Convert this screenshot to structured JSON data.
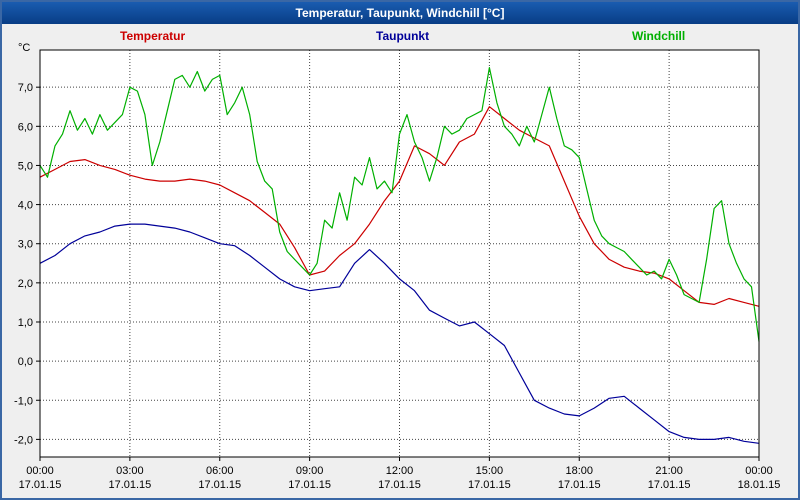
{
  "title": "Temperatur, Taupunkt, Windchill [°C]",
  "legend": [
    "Temperatur",
    "Taupunkt",
    "Windchill"
  ],
  "chart_data": {
    "type": "line",
    "title": "Temperatur, Taupunkt, Windchill [°C]",
    "ylabel": "°C",
    "xlabel": "",
    "grid": "dotted",
    "legend_position": "top",
    "xlim": [
      0,
      24
    ],
    "ylim": [
      -2.45,
      7.95
    ],
    "yticks": [
      7,
      6,
      5,
      4,
      3,
      2,
      1,
      0,
      -1,
      -2
    ],
    "ytick_labels": [
      "7,0",
      "6,0",
      "5,0",
      "4,0",
      "3,0",
      "2,0",
      "1,0",
      "0,0",
      "-1,0",
      "-2,0"
    ],
    "xticks": [
      0,
      3,
      6,
      9,
      12,
      15,
      18,
      21,
      24
    ],
    "xtick_labels": [
      "00:00",
      "03:00",
      "06:00",
      "09:00",
      "12:00",
      "15:00",
      "18:00",
      "21:00",
      "00:00"
    ],
    "xtick_sublabels": [
      "17.01.15",
      "17.01.15",
      "17.01.15",
      "17.01.15",
      "17.01.15",
      "17.01.15",
      "17.01.15",
      "17.01.15",
      "18.01.15"
    ],
    "colors": {
      "grid": "#444444",
      "axis": "#000000",
      "plot_bg": "#ffffff",
      "frame_bg": "#efefef",
      "titlebar": "#0c4da2"
    },
    "series": [
      {
        "name": "Temperatur",
        "color": "#cc0000",
        "x0": 0,
        "dx": 0.5,
        "values": [
          4.7,
          4.9,
          5.1,
          5.15,
          5.0,
          4.9,
          4.75,
          4.65,
          4.6,
          4.6,
          4.65,
          4.6,
          4.5,
          4.3,
          4.1,
          3.8,
          3.5,
          2.9,
          2.2,
          2.3,
          2.7,
          3.0,
          3.5,
          4.1,
          4.6,
          5.5,
          5.3,
          5.0,
          5.6,
          5.8,
          6.5,
          6.2,
          5.9,
          5.7,
          5.5,
          4.6,
          3.7,
          3.0,
          2.6,
          2.4,
          2.3,
          2.25,
          2.1,
          1.8,
          1.5,
          1.45,
          1.6,
          1.5,
          1.4
        ]
      },
      {
        "name": "Taupunkt",
        "color": "#000099",
        "x0": 0,
        "dx": 0.5,
        "values": [
          2.5,
          2.7,
          3.0,
          3.2,
          3.3,
          3.45,
          3.5,
          3.5,
          3.45,
          3.4,
          3.3,
          3.15,
          3.0,
          2.95,
          2.7,
          2.4,
          2.1,
          1.9,
          1.8,
          1.85,
          1.9,
          2.5,
          2.85,
          2.5,
          2.1,
          1.8,
          1.3,
          1.1,
          0.9,
          1.0,
          0.7,
          0.4,
          -0.3,
          -1.0,
          -1.2,
          -1.35,
          -1.4,
          -1.2,
          -0.95,
          -0.9,
          -1.2,
          -1.5,
          -1.8,
          -1.95,
          -2.0,
          -2.0,
          -1.95,
          -2.05,
          -2.1
        ]
      },
      {
        "name": "Windchill",
        "color": "#00b000",
        "x0": 0,
        "dx": 0.25,
        "values": [
          5.0,
          4.7,
          5.5,
          5.8,
          6.4,
          5.9,
          6.2,
          5.8,
          6.3,
          5.9,
          6.1,
          6.3,
          7.0,
          6.9,
          6.3,
          5.0,
          5.6,
          6.4,
          7.2,
          7.3,
          7.0,
          7.4,
          6.9,
          7.2,
          7.3,
          6.3,
          6.6,
          7.0,
          6.3,
          5.1,
          4.6,
          4.4,
          3.3,
          2.8,
          2.6,
          2.4,
          2.2,
          2.5,
          3.6,
          3.4,
          4.3,
          3.6,
          4.7,
          4.5,
          5.2,
          4.4,
          4.6,
          4.3,
          5.8,
          6.3,
          5.6,
          5.2,
          4.6,
          5.2,
          6.0,
          5.8,
          5.9,
          6.2,
          6.3,
          6.4,
          7.5,
          6.6,
          6.0,
          5.8,
          5.5,
          6.0,
          5.6,
          6.3,
          7.0,
          6.2,
          5.5,
          5.4,
          5.2,
          4.4,
          3.6,
          3.2,
          3.0,
          2.9,
          2.8,
          2.6,
          2.4,
          2.2,
          2.3,
          2.1,
          2.6,
          2.2,
          1.7,
          1.6,
          1.5,
          2.6,
          3.9,
          4.1,
          3.0,
          2.5,
          2.1,
          1.9,
          0.5
        ]
      }
    ]
  }
}
